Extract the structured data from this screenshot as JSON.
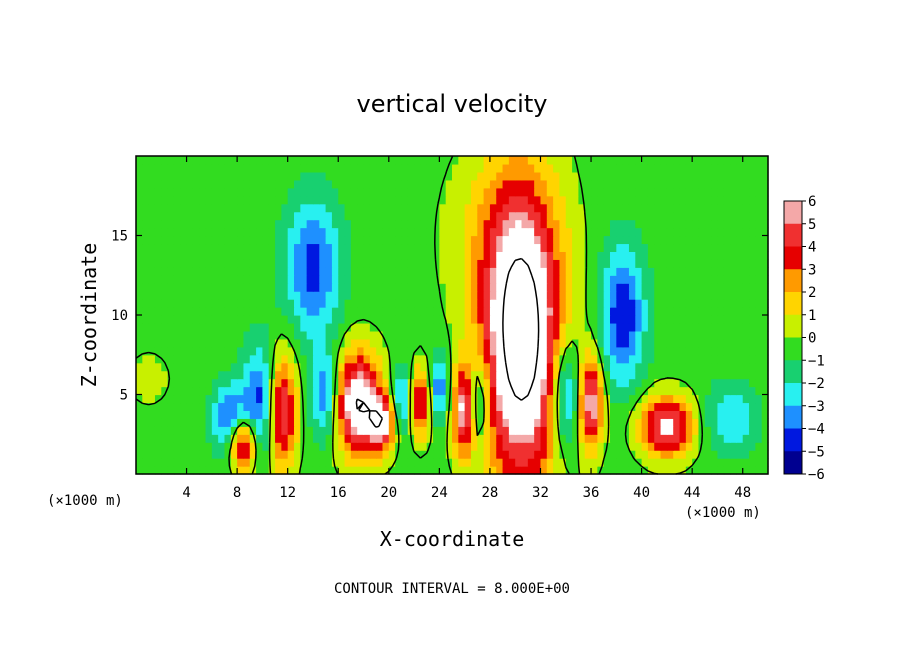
{
  "chart_data": {
    "type": "heatmap",
    "title": "vertical velocity",
    "xlabel": "X-coordinate",
    "ylabel": "Z-coordinate",
    "x_unit_label": "(×1000 m)",
    "y_unit_label": "(×1000 m)",
    "footer": "CONTOUR INTERVAL = 8.000E+00",
    "xlim": [
      0,
      50
    ],
    "ylim": [
      0,
      20
    ],
    "x_ticks": [
      4,
      8,
      12,
      16,
      20,
      24,
      28,
      32,
      36,
      40,
      44,
      48
    ],
    "y_ticks": [
      5,
      10,
      15
    ],
    "colorbar": {
      "levels": [
        6,
        5,
        4,
        3,
        2,
        1,
        0,
        -1,
        -2,
        -3,
        -4,
        -5,
        -6
      ],
      "colors": [
        "#f4a8a8",
        "#f03030",
        "#e60000",
        "#ff9a00",
        "#ffd400",
        "#c8f000",
        "#32dc20",
        "#18d070",
        "#28f0f0",
        "#1e90ff",
        "#0018e0",
        "#000090",
        "#7000a8"
      ]
    },
    "features": [
      {
        "name": "main updraft",
        "x": 30.5,
        "z": 8.5,
        "sx": 2.2,
        "sz": 6.5,
        "w": 9.5
      },
      {
        "name": "updraft near x=17",
        "x": 17.5,
        "z": 4.5,
        "sx": 1.3,
        "sz": 2.2,
        "w": 8
      },
      {
        "name": "updraft near x=11.5",
        "x": 11.5,
        "z": 4.0,
        "sx": 0.8,
        "sz": 2.5,
        "w": 7
      },
      {
        "name": "updraft near x=8.5",
        "x": 8.5,
        "z": 2.0,
        "sx": 0.7,
        "sz": 1.2,
        "w": 7
      },
      {
        "name": "updraft near x=42",
        "x": 42.0,
        "z": 3.0,
        "sx": 1.5,
        "sz": 1.3,
        "w": 6.5
      },
      {
        "name": "updraft near x=19.5",
        "x": 19.5,
        "z": 3.2,
        "sx": 0.8,
        "sz": 1.2,
        "w": 6
      },
      {
        "name": "updraft near x=36",
        "x": 36.0,
        "z": 4.5,
        "sx": 0.6,
        "sz": 2.0,
        "w": 7
      },
      {
        "name": "updraft near x=26",
        "x": 26.0,
        "z": 4.0,
        "sx": 0.6,
        "sz": 2.0,
        "w": 7
      },
      {
        "name": "updraft near x=22.5",
        "x": 22.5,
        "z": 4.5,
        "sx": 0.5,
        "sz": 1.5,
        "w": 6
      },
      {
        "name": "downdraft near x=14",
        "x": 14.0,
        "z": 13.0,
        "sx": 1.5,
        "sz": 3.0,
        "w": -4
      },
      {
        "name": "downdraft near x=38.5",
        "x": 38.5,
        "z": 10.0,
        "sx": 1.2,
        "sz": 3.0,
        "w": -4.5
      },
      {
        "name": "downdraft near x=34",
        "x": 34.0,
        "z": 5.0,
        "sx": 0.8,
        "sz": 2.5,
        "w": -4.5
      },
      {
        "name": "downdraft near x=10",
        "x": 10.0,
        "z": 4.5,
        "sx": 1.0,
        "sz": 2.5,
        "w": -4.5
      },
      {
        "name": "downdraft near x=15",
        "x": 15.0,
        "z": 5.0,
        "sx": 0.8,
        "sz": 2.0,
        "w": -4
      },
      {
        "name": "downdraft near x=7.5",
        "x": 7.5,
        "z": 3.5,
        "sx": 1.0,
        "sz": 1.5,
        "w": -4
      },
      {
        "name": "downdraft near x=21",
        "x": 21.0,
        "z": 4.5,
        "sx": 0.5,
        "sz": 1.5,
        "w": -4
      },
      {
        "name": "downdraft near x=24",
        "x": 24.0,
        "z": 5.5,
        "sx": 0.5,
        "sz": 1.5,
        "w": -4
      },
      {
        "name": "downdraft near x=27",
        "x": 27.0,
        "z": 4.5,
        "sx": 0.6,
        "sz": 2.0,
        "w": -4.5
      },
      {
        "name": "downdraft near x=47",
        "x": 47.0,
        "z": 3.5,
        "sx": 1.5,
        "sz": 1.5,
        "w": -2.5
      },
      {
        "name": "upper ring near x=28.5",
        "x": 28.5,
        "z": 15.0,
        "sx": 3.0,
        "sz": 4.0,
        "w": 1.3
      },
      {
        "name": "weak updraft near x=1",
        "x": 1.0,
        "z": 6.0,
        "sx": 1.2,
        "sz": 1.2,
        "w": 1.0
      }
    ]
  }
}
